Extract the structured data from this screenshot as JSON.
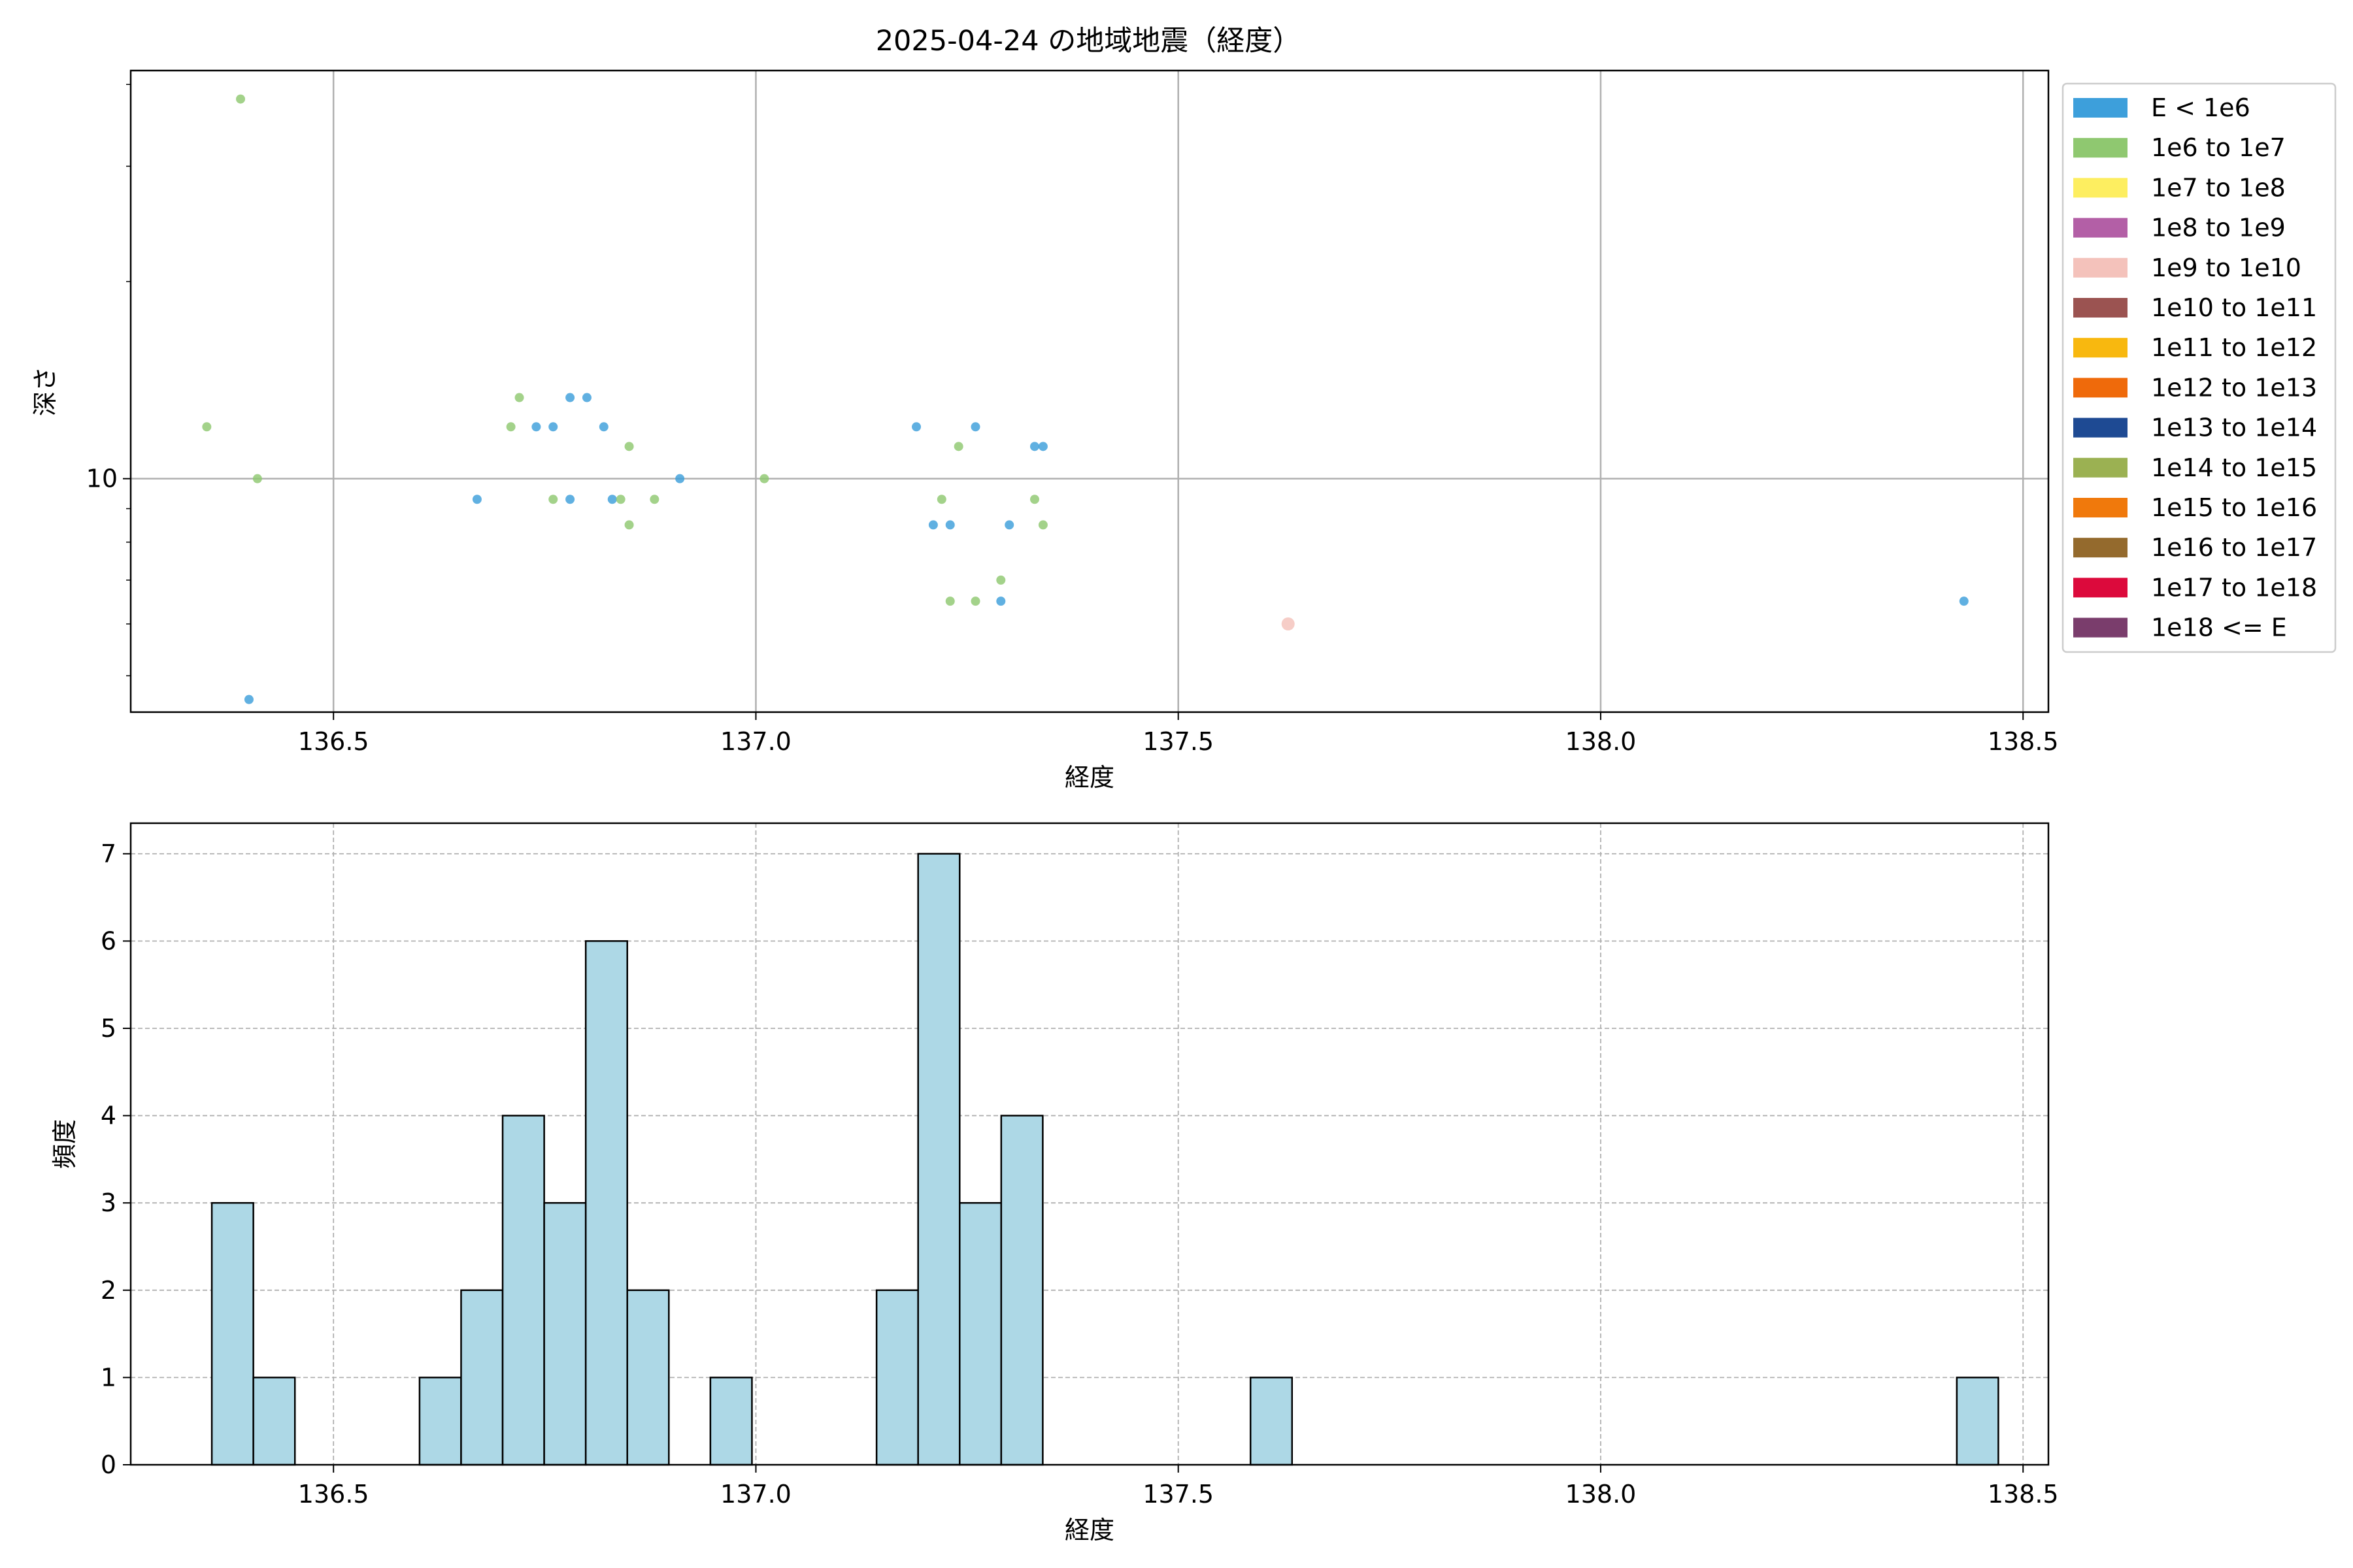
{
  "figure": {
    "title": "2025-04-24 の地域地震（経度）"
  },
  "chart_data": [
    {
      "type": "scatter",
      "xlabel": "経度",
      "ylabel": "深さ",
      "xscale": "linear",
      "yscale": "log",
      "xlim": [
        136.26,
        138.53
      ],
      "ylim": [
        4.4,
        42
      ],
      "xticks": [
        136.5,
        137.0,
        137.5,
        138.0,
        138.5
      ],
      "xticklabels": [
        "136.5",
        "137.0",
        "137.5",
        "138.0",
        "138.5"
      ],
      "yticks": [
        10
      ],
      "yticklabels": [
        "10"
      ],
      "grid": true,
      "legend_position": "outside-right",
      "legend": [
        {
          "label": "E < 1e6",
          "color": "#3d9fdb"
        },
        {
          "label": "1e6 to 1e7",
          "color": "#8fc870"
        },
        {
          "label": "1e7 to 1e8",
          "color": "#fdee60"
        },
        {
          "label": "1e8 to 1e9",
          "color": "#b35fa6"
        },
        {
          "label": "1e9 to 1e10",
          "color": "#f4c2bb"
        },
        {
          "label": "1e10 to 1e11",
          "color": "#9b5351"
        },
        {
          "label": "1e11 to 1e12",
          "color": "#f8b80f"
        },
        {
          "label": "1e12 to 1e13",
          "color": "#ef6a0b"
        },
        {
          "label": "1e13 to 1e14",
          "color": "#1e4a93"
        },
        {
          "label": "1e14 to 1e15",
          "color": "#9bb152"
        },
        {
          "label": "1e15 to 1e16",
          "color": "#f0790c"
        },
        {
          "label": "1e16 to 1e17",
          "color": "#946a2d"
        },
        {
          "label": "1e17 to 1e18",
          "color": "#dc0a3c"
        },
        {
          "label": "1e18 <= E",
          "color": "#7a3d6c"
        }
      ],
      "series": [
        {
          "category": 0,
          "points": [
            [
              136.4,
              4.6
            ],
            [
              136.67,
              9.3
            ],
            [
              136.74,
              12
            ],
            [
              136.76,
              12
            ],
            [
              136.78,
              13.3
            ],
            [
              136.78,
              9.3
            ],
            [
              136.8,
              13.3
            ],
            [
              136.82,
              12
            ],
            [
              136.83,
              9.3
            ],
            [
              136.91,
              10
            ],
            [
              137.19,
              12
            ],
            [
              137.21,
              8.5
            ],
            [
              137.23,
              8.5
            ],
            [
              137.26,
              12
            ],
            [
              137.29,
              6.5
            ],
            [
              137.3,
              8.5
            ],
            [
              137.33,
              11.2
            ],
            [
              137.34,
              11.2
            ],
            [
              138.43,
              6.5
            ]
          ]
        },
        {
          "category": 1,
          "points": [
            [
              136.35,
              12
            ],
            [
              136.39,
              38
            ],
            [
              136.41,
              10
            ],
            [
              136.71,
              12
            ],
            [
              136.72,
              13.3
            ],
            [
              136.76,
              9.3
            ],
            [
              136.84,
              9.3
            ],
            [
              136.85,
              11.2
            ],
            [
              136.85,
              8.5
            ],
            [
              136.88,
              9.3
            ],
            [
              137.01,
              10
            ],
            [
              137.22,
              9.3
            ],
            [
              137.23,
              6.5
            ],
            [
              137.24,
              11.2
            ],
            [
              137.26,
              6.5
            ],
            [
              137.29,
              7.0
            ],
            [
              137.33,
              9.3
            ],
            [
              137.34,
              8.5
            ]
          ]
        },
        {
          "category": 4,
          "large": true,
          "points": [
            [
              137.63,
              6.0
            ]
          ]
        }
      ]
    },
    {
      "type": "bar",
      "xlabel": "経度",
      "ylabel": "頻度",
      "xlim": [
        136.26,
        138.53
      ],
      "ylim": [
        0,
        7.35
      ],
      "xticks": [
        136.5,
        137.0,
        137.5,
        138.0,
        138.5
      ],
      "xticklabels": [
        "136.5",
        "137.0",
        "137.5",
        "138.0",
        "138.5"
      ],
      "yticks": [
        0,
        1,
        2,
        3,
        4,
        5,
        6,
        7
      ],
      "yticklabels": [
        "0",
        "1",
        "2",
        "3",
        "4",
        "5",
        "6",
        "7"
      ],
      "grid": true,
      "bar_color": "#add8e6",
      "bar_edge": "#000000",
      "bin_start": 136.356,
      "bin_width": 0.04918,
      "counts": [
        3,
        1,
        0,
        0,
        0,
        1,
        2,
        4,
        3,
        6,
        2,
        0,
        1,
        0,
        0,
        0,
        2,
        7,
        3,
        4,
        0,
        0,
        0,
        0,
        0,
        1,
        0,
        0,
        0,
        0,
        0,
        0,
        0,
        0,
        0,
        0,
        0,
        0,
        0,
        0,
        0,
        0,
        1
      ]
    }
  ]
}
